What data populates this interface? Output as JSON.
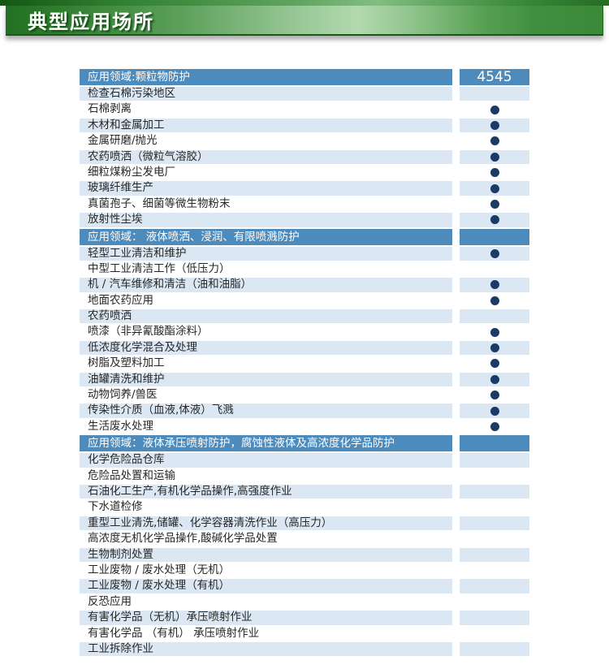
{
  "banner": {
    "title": "典型应用场所"
  },
  "table": {
    "product_label": "4545",
    "sections": [
      {
        "header": "应用领域:颗粒物防护",
        "rows": [
          {
            "label": "检查石棉污染地区",
            "dot": false
          },
          {
            "label": "石棉剥离",
            "dot": true
          },
          {
            "label": "木材和金属加工",
            "dot": true
          },
          {
            "label": "金属研磨/抛光",
            "dot": true
          },
          {
            "label": "农药喷洒（微粒气溶胶）",
            "dot": true
          },
          {
            "label": "细粒煤粉尘发电厂",
            "dot": true
          },
          {
            "label": "玻璃纤维生产",
            "dot": true
          },
          {
            "label": "真菌孢子、细菌等微生物粉末",
            "dot": true
          },
          {
            "label": "放射性尘埃",
            "dot": true
          }
        ]
      },
      {
        "header": "应用领域： 液体喷洒、浸润、有限喷溅防护",
        "rows": [
          {
            "label": "轻型工业清洁和维护",
            "dot": true
          },
          {
            "label": "中型工业清洁工作（低压力）",
            "dot": false
          },
          {
            "label": "机 / 汽车维修和清洁（油和油脂）",
            "dot": true
          },
          {
            "label": "地面农药应用",
            "dot": true
          },
          {
            "label": "农药喷洒",
            "dot": false
          },
          {
            "label": "喷漆（非异氰酸酯涂料）",
            "dot": true
          },
          {
            "label": "低浓度化学混合及处理",
            "dot": true
          },
          {
            "label": "树脂及塑料加工",
            "dot": true
          },
          {
            "label": "油罐清洗和维护",
            "dot": true
          },
          {
            "label": "动物饲养/兽医",
            "dot": true
          },
          {
            "label": "传染性介质（血液,体液）飞溅",
            "dot": true
          },
          {
            "label": "生活废水处理",
            "dot": true
          }
        ]
      },
      {
        "header": "应用领域：液体承压喷射防护，腐蚀性液体及高浓度化学品防护",
        "rows": [
          {
            "label": "化学危险品仓库",
            "dot": false
          },
          {
            "label": "危险品处置和运输",
            "dot": false
          },
          {
            "label": "石油化工生产,有机化学品操作,高强度作业",
            "dot": false
          },
          {
            "label": "下水道检修",
            "dot": false
          },
          {
            "label": "重型工业清洗,储罐、化学容器清洗作业（高压力）",
            "dot": false
          },
          {
            "label": "高浓度无机化学品操作,酸碱化学品处置",
            "dot": false
          },
          {
            "label": "生物制剂处置",
            "dot": false
          },
          {
            "label": "工业废物 / 废水处理（无机）",
            "dot": false
          },
          {
            "label": "工业废物 / 废水处理（有机）",
            "dot": false
          },
          {
            "label": "反恐应用",
            "dot": false
          },
          {
            "label": "有害化学品（无机）承压喷射作业",
            "dot": false
          },
          {
            "label": "有害化学品 （有机） 承压喷射作业",
            "dot": false
          },
          {
            "label": "工业拆除作业",
            "dot": false
          }
        ]
      }
    ]
  },
  "colors": {
    "banner_green_dark": "#226f22",
    "banner_green_light": "#b2d9ae",
    "section_header_blue": "#4d8bbd",
    "row_alt_blue": "#dbe8f4",
    "dot_navy": "#1b3a66"
  }
}
